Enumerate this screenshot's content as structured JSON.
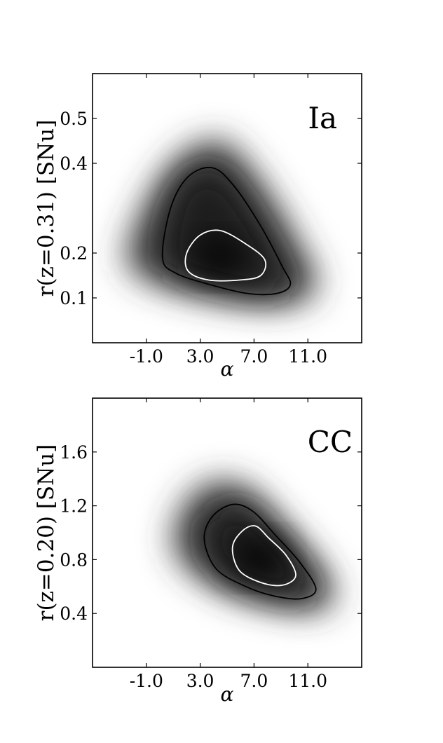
{
  "chart_data": [
    {
      "type": "contour",
      "panel_label": "Ia",
      "xlabel": "α",
      "ylabel": "r(z=0.31) [SNu]",
      "xlim": [
        -5.0,
        15.0
      ],
      "ylim": [
        0.0,
        0.6
      ],
      "xticks": [
        {
          "value": -1.0,
          "label": "-1.0"
        },
        {
          "value": 3.0,
          "label": "3.0"
        },
        {
          "value": 7.0,
          "label": "7.0"
        },
        {
          "value": 11.0,
          "label": "11.0"
        }
      ],
      "yticks": [
        {
          "value": 0.1,
          "label": "0.1"
        },
        {
          "value": 0.2,
          "label": "0.2"
        },
        {
          "value": 0.4,
          "label": "0.4"
        },
        {
          "value": 0.5,
          "label": "0.5"
        }
      ],
      "peak": {
        "alpha": 4.4,
        "r": 0.19
      },
      "contours": [
        {
          "level": "outer",
          "color": "#000000",
          "points": [
            [
              0.2,
              0.19
            ],
            [
              0.8,
              0.3
            ],
            [
              2.1,
              0.37
            ],
            [
              3.9,
              0.39
            ],
            [
              5.5,
              0.35
            ],
            [
              7.5,
              0.26
            ],
            [
              9.1,
              0.17
            ],
            [
              9.7,
              0.13
            ],
            [
              8.7,
              0.11
            ],
            [
              6.5,
              0.11
            ],
            [
              3.7,
              0.13
            ],
            [
              1.2,
              0.155
            ]
          ]
        },
        {
          "level": "inner",
          "color": "#ffffff",
          "points": [
            [
              2.0,
              0.2
            ],
            [
              3.0,
              0.24
            ],
            [
              4.5,
              0.25
            ],
            [
              6.4,
              0.22
            ],
            [
              7.8,
              0.185
            ],
            [
              7.5,
              0.15
            ],
            [
              6.0,
              0.14
            ],
            [
              3.6,
              0.14
            ],
            [
              2.1,
              0.16
            ]
          ]
        }
      ],
      "density_region": [
        [
          -2.5,
          0.19
        ],
        [
          -1.2,
          0.3
        ],
        [
          1.0,
          0.4
        ],
        [
          3.7,
          0.45
        ],
        [
          5.5,
          0.43
        ],
        [
          8.1,
          0.33
        ],
        [
          10.1,
          0.23
        ],
        [
          11.7,
          0.13
        ],
        [
          10.0,
          0.09
        ],
        [
          6.5,
          0.09
        ],
        [
          2.3,
          0.11
        ],
        [
          -1.2,
          0.145
        ]
      ]
    },
    {
      "type": "contour",
      "panel_label": "CC",
      "xlabel": "α",
      "ylabel": "r(z=0.20) [SNu]",
      "xlim": [
        -5.0,
        15.0
      ],
      "ylim": [
        0.0,
        2.0
      ],
      "xticks": [
        {
          "value": -1.0,
          "label": "-1.0"
        },
        {
          "value": 3.0,
          "label": "3.0"
        },
        {
          "value": 7.0,
          "label": "7.0"
        },
        {
          "value": 11.0,
          "label": "11.0"
        }
      ],
      "yticks": [
        {
          "value": 0.4,
          "label": "0.4"
        },
        {
          "value": 0.8,
          "label": "0.8"
        },
        {
          "value": 1.2,
          "label": "1.2"
        },
        {
          "value": 1.6,
          "label": "1.6"
        }
      ],
      "peak": {
        "alpha": 7.4,
        "r": 0.81
      },
      "contours": [
        {
          "level": "outer",
          "color": "#000000",
          "points": [
            [
              3.3,
              0.95
            ],
            [
              3.9,
              1.12
            ],
            [
              5.4,
              1.21
            ],
            [
              6.9,
              1.16
            ],
            [
              8.6,
              0.98
            ],
            [
              10.4,
              0.78
            ],
            [
              11.6,
              0.58
            ],
            [
              10.5,
              0.51
            ],
            [
              8.5,
              0.53
            ],
            [
              6.4,
              0.6
            ],
            [
              4.2,
              0.73
            ]
          ]
        },
        {
          "level": "inner",
          "color": "#ffffff",
          "points": [
            [
              5.4,
              0.89
            ],
            [
              6.1,
              1.01
            ],
            [
              7.1,
              1.05
            ],
            [
              8.1,
              0.96
            ],
            [
              9.4,
              0.83
            ],
            [
              10.1,
              0.68
            ],
            [
              9.1,
              0.61
            ],
            [
              7.5,
              0.63
            ],
            [
              5.9,
              0.72
            ]
          ]
        }
      ],
      "density_region": [
        [
          1.0,
          0.92
        ],
        [
          2.0,
          1.23
        ],
        [
          4.2,
          1.38
        ],
        [
          6.6,
          1.32
        ],
        [
          9.0,
          1.07
        ],
        [
          11.4,
          0.8
        ],
        [
          13.0,
          0.53
        ],
        [
          11.3,
          0.43
        ],
        [
          8.3,
          0.47
        ],
        [
          5.4,
          0.55
        ],
        [
          2.5,
          0.71
        ]
      ]
    }
  ]
}
